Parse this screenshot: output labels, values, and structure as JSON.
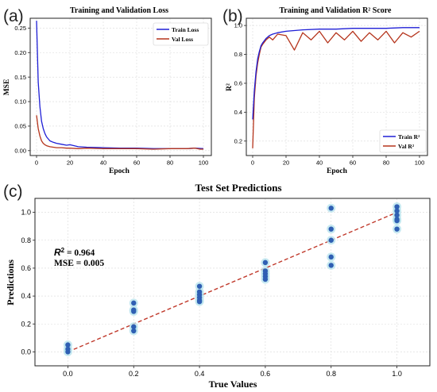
{
  "panels": {
    "a": {
      "letter": "(a)",
      "title": "Training and Validation Loss",
      "xlabel": "Epoch",
      "ylabel": "MSE",
      "xticks": [
        "0",
        "20",
        "40",
        "60",
        "80",
        "100"
      ],
      "yticks": [
        "0.00",
        "0.05",
        "0.10",
        "0.15",
        "0.20",
        "0.25"
      ],
      "legend": [
        "Train Loss",
        "Val Loss"
      ]
    },
    "b": {
      "letter": "(b)",
      "title": "Training and Validation R² Score",
      "xlabel": "Epoch",
      "ylabel": "R²",
      "xticks": [
        "0",
        "20",
        "40",
        "60",
        "80",
        "100"
      ],
      "yticks": [
        "0.2",
        "0.4",
        "0.6",
        "0.8",
        "1.0"
      ],
      "legend": [
        "Train R²",
        "Val R²"
      ]
    },
    "c": {
      "letter": "(c)",
      "title": "Test Set Predictions",
      "xlabel": "True Values",
      "ylabel": "Predictions",
      "xticks": [
        "0.0",
        "0.2",
        "0.4",
        "0.6",
        "0.8",
        "1.0"
      ],
      "yticks": [
        "0.0",
        "0.2",
        "0.4",
        "0.6",
        "0.8",
        "1.0"
      ],
      "r2_label": "R",
      "r2_sup": "2",
      "r2_value": " = 0.964",
      "mse_text": "MSE = 0.005"
    }
  },
  "colors": {
    "train": "#1f1fd6",
    "val": "#b5341c",
    "points": "#2f5fb3",
    "halo": "#b9e3ee",
    "fit": "#c0392b",
    "grid": "#d9d9d9"
  },
  "chart_data": [
    {
      "type": "line",
      "title": "Training and Validation Loss",
      "xlabel": "Epoch",
      "ylabel": "MSE",
      "xlim": [
        0,
        100
      ],
      "ylim": [
        -0.01,
        0.27
      ],
      "grid": true,
      "legend": "top-right",
      "series": [
        {
          "name": "Train Loss",
          "x": [
            0,
            1,
            2,
            3,
            4,
            5,
            6,
            7,
            8,
            10,
            12,
            15,
            18,
            20,
            25,
            30,
            40,
            50,
            60,
            70,
            80,
            90,
            95,
            100
          ],
          "values": [
            0.265,
            0.14,
            0.09,
            0.06,
            0.045,
            0.035,
            0.028,
            0.024,
            0.02,
            0.017,
            0.015,
            0.013,
            0.011,
            0.012,
            0.008,
            0.007,
            0.006,
            0.005,
            0.005,
            0.004,
            0.004,
            0.004,
            0.005,
            0.004
          ]
        },
        {
          "name": "Val Loss",
          "x": [
            0,
            1,
            2,
            3,
            4,
            5,
            6,
            8,
            10,
            12,
            15,
            18,
            20,
            25,
            30,
            40,
            50,
            60,
            70,
            80,
            90,
            95,
            98,
            100
          ],
          "values": [
            0.072,
            0.045,
            0.03,
            0.02,
            0.015,
            0.012,
            0.01,
            0.008,
            0.007,
            0.006,
            0.006,
            0.005,
            0.005,
            0.004,
            0.005,
            0.004,
            0.004,
            0.004,
            0.003,
            0.004,
            0.004,
            0.005,
            0.003,
            0.003
          ]
        }
      ]
    },
    {
      "type": "line",
      "title": "Training and Validation R² Score",
      "xlabel": "Epoch",
      "ylabel": "R²",
      "xlim": [
        0,
        100
      ],
      "ylim": [
        0.1,
        1.05
      ],
      "grid": true,
      "legend": "bottom-right",
      "series": [
        {
          "name": "Train R²",
          "x": [
            0,
            1,
            2,
            3,
            4,
            5,
            6,
            8,
            10,
            12,
            15,
            20,
            25,
            30,
            40,
            50,
            60,
            70,
            80,
            90,
            95,
            100
          ],
          "values": [
            0.35,
            0.55,
            0.68,
            0.77,
            0.82,
            0.86,
            0.88,
            0.91,
            0.93,
            0.94,
            0.95,
            0.96,
            0.965,
            0.97,
            0.975,
            0.975,
            0.98,
            0.98,
            0.98,
            0.985,
            0.985,
            0.985
          ]
        },
        {
          "name": "Val R²",
          "x": [
            0,
            1,
            2,
            3,
            4,
            5,
            6,
            8,
            10,
            12,
            15,
            20,
            25,
            30,
            35,
            40,
            45,
            50,
            55,
            60,
            65,
            70,
            75,
            80,
            85,
            90,
            95,
            100
          ],
          "values": [
            0.15,
            0.5,
            0.65,
            0.74,
            0.8,
            0.85,
            0.87,
            0.9,
            0.92,
            0.9,
            0.94,
            0.93,
            0.83,
            0.95,
            0.9,
            0.96,
            0.88,
            0.95,
            0.9,
            0.96,
            0.89,
            0.95,
            0.9,
            0.96,
            0.88,
            0.95,
            0.92,
            0.96
          ]
        }
      ]
    },
    {
      "type": "scatter",
      "title": "Test Set Predictions",
      "xlabel": "True Values",
      "ylabel": "Predictions",
      "xlim": [
        -0.1,
        1.1
      ],
      "ylim": [
        -0.1,
        1.1
      ],
      "grid": true,
      "x": [
        0,
        0,
        0,
        0.2,
        0.2,
        0.2,
        0.2,
        0.2,
        0.4,
        0.4,
        0.4,
        0.4,
        0.4,
        0.4,
        0.6,
        0.6,
        0.6,
        0.6,
        0.6,
        0.8,
        0.8,
        0.8,
        0.8,
        0.8,
        1.0,
        1.0,
        1.0,
        1.0,
        1.0,
        1.0
      ],
      "values": [
        0.05,
        0.02,
        0.0,
        0.35,
        0.3,
        0.29,
        0.18,
        0.15,
        0.47,
        0.43,
        0.41,
        0.39,
        0.37,
        0.36,
        0.64,
        0.58,
        0.56,
        0.54,
        0.52,
        1.03,
        0.88,
        0.8,
        0.68,
        0.62,
        1.04,
        1.01,
        0.98,
        0.95,
        0.94,
        0.88
      ],
      "fit_line": {
        "x": [
          0,
          1
        ],
        "y": [
          0,
          1
        ]
      },
      "annotations": [
        "R² = 0.964",
        "MSE = 0.005"
      ]
    }
  ]
}
